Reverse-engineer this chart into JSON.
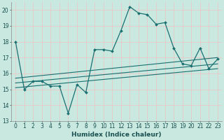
{
  "xlabel": "Humidex (Indice chaleur)",
  "bg_color": "#c8e8e0",
  "plot_bg": "#c8e8e0",
  "grid_h_color": "#e8c8c8",
  "grid_v_color": "#e8c8c8",
  "line_color": "#1a7070",
  "xlim": [
    -0.5,
    23.5
  ],
  "ylim": [
    13,
    20.5
  ],
  "yticks": [
    13,
    14,
    15,
    16,
    17,
    18,
    19,
    20
  ],
  "xticks": [
    0,
    1,
    2,
    3,
    4,
    5,
    6,
    7,
    8,
    9,
    10,
    11,
    12,
    13,
    14,
    15,
    16,
    17,
    18,
    19,
    20,
    21,
    22,
    23
  ],
  "main_x": [
    0,
    1,
    2,
    3,
    4,
    5,
    6,
    7,
    8,
    9,
    10,
    11,
    12,
    13,
    14,
    15,
    16,
    17,
    18,
    19,
    20,
    21,
    22,
    23
  ],
  "main_y": [
    18.0,
    15.0,
    15.5,
    15.5,
    15.2,
    15.2,
    13.5,
    15.3,
    14.8,
    17.5,
    17.5,
    17.4,
    18.7,
    20.2,
    19.8,
    19.7,
    19.1,
    19.2,
    17.6,
    16.6,
    16.5,
    17.6,
    16.3,
    16.9
  ],
  "trend1_x": [
    0,
    23
  ],
  "trend1_y": [
    15.1,
    16.3
  ],
  "trend2_x": [
    0,
    23
  ],
  "trend2_y": [
    15.4,
    16.6
  ],
  "trend3_x": [
    0,
    23
  ],
  "trend3_y": [
    15.7,
    17.0
  ]
}
